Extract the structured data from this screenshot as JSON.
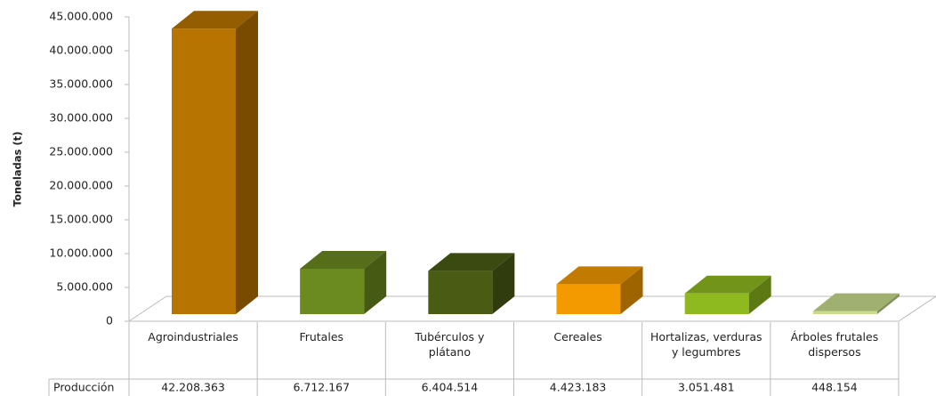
{
  "chart_data": {
    "type": "bar3d",
    "y_label": "Toneladas (t)",
    "categories": [
      "Agroindustriales",
      "Frutales",
      "Tubérculos y plátano",
      "Cereales",
      "Hortalizas, verduras y legumbres",
      "Árboles frutales dispersos"
    ],
    "series": [
      {
        "name": "Producción",
        "values": [
          42208363,
          6712167,
          6404514,
          4423183,
          3051481,
          448154
        ],
        "value_labels": [
          "42.208.363",
          "6.712.167",
          "6.404.514",
          "4.423.183",
          "3.051.481",
          "448.154"
        ],
        "colors": [
          "#b87400",
          "#6b8a1f",
          "#4a5c14",
          "#f29a00",
          "#8fba1f",
          "#c8dc8c"
        ]
      }
    ],
    "ylim": [
      0,
      45000000
    ],
    "yticks": [
      0,
      {
        "value": 5000000,
        "label": "5.000.000"
      },
      {
        "value": 10000000,
        "label": "10.000.000"
      },
      {
        "value": 15000000,
        "label": "15.000.000"
      },
      {
        "value": 20000000,
        "label": "20.000.000"
      },
      {
        "value": 25000000,
        "label": "25.000.000"
      },
      {
        "value": 30000000,
        "label": "30.000.000"
      },
      {
        "value": 35000000,
        "label": "35.000.000"
      },
      {
        "value": 40000000,
        "label": "40.000.000"
      },
      {
        "value": 45000000,
        "label": "45.000.000"
      }
    ]
  }
}
